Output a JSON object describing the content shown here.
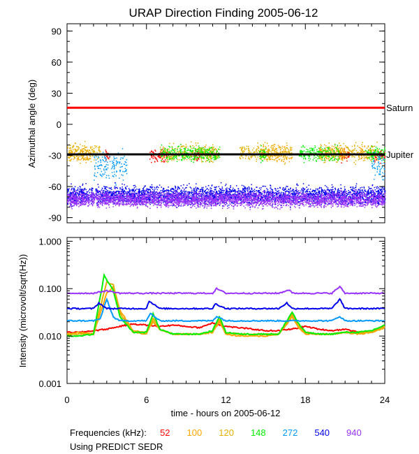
{
  "chart_data": [
    {
      "type": "scatter",
      "title": "URAP Direction Finding  2005-06-12",
      "xlabel": "",
      "ylabel": "Azimuthal angle (deg)",
      "xlim": [
        0,
        24
      ],
      "ylim": [
        -95,
        97
      ],
      "yticks": [
        90,
        60,
        30,
        0,
        -30,
        -60,
        -90
      ],
      "reference_lines": [
        {
          "name": "Saturn",
          "value": 16,
          "x_range": [
            0,
            24
          ],
          "color": "#ff0000"
        },
        {
          "name": "Jupiter",
          "value": -29,
          "x_range": [
            0,
            24
          ],
          "color": "#000000"
        }
      ],
      "series": [
        {
          "name": "52",
          "color": "#ff0000",
          "azimuth_mean": -30,
          "azimuth_spread": 4,
          "active_hours": [
            [
              2.8,
              3.2
            ],
            [
              6.2,
              7.6
            ],
            [
              9.5,
              10
            ],
            [
              20.5,
              21.3
            ],
            [
              23.2,
              24
            ]
          ]
        },
        {
          "name": "100",
          "color": "#ffa500",
          "azimuth_mean": -28,
          "azimuth_spread": 5,
          "active_hours": [
            [
              0,
              1.8
            ],
            [
              10,
              11
            ],
            [
              14.5,
              17
            ],
            [
              19,
              21
            ],
            [
              22,
              23
            ]
          ]
        },
        {
          "name": "120",
          "color": "#e0b000",
          "azimuth_mean": -27,
          "azimuth_spread": 6,
          "active_hours": [
            [
              0,
              2.5
            ],
            [
              7,
              11.5
            ],
            [
              13,
              17
            ],
            [
              19,
              23.5
            ]
          ]
        },
        {
          "name": "148",
          "color": "#00ee00",
          "azimuth_mean": -28,
          "azimuth_spread": 5,
          "active_hours": [
            [
              7,
              11.5
            ],
            [
              14.5,
              15
            ],
            [
              17.5,
              20.5
            ],
            [
              22.5,
              24
            ]
          ]
        },
        {
          "name": "272",
          "color": "#0099ff",
          "azimuth_mean": -40,
          "azimuth_spread": 10,
          "active_hours": [
            [
              2,
              4.5
            ],
            [
              23,
              24
            ]
          ]
        },
        {
          "name": "540",
          "color": "#0000ee",
          "azimuth_mean": -68,
          "azimuth_spread": 6,
          "active_hours": [
            [
              0,
              24
            ]
          ]
        },
        {
          "name": "940",
          "color": "#9933ff",
          "azimuth_mean": -72,
          "azimuth_spread": 5,
          "active_hours": [
            [
              0,
              24
            ]
          ]
        }
      ]
    },
    {
      "type": "line",
      "title": "",
      "xlabel": "time - hours on 2005-06-12",
      "ylabel": "Intensity (microvolt/sqrt(Hz))",
      "xlim": [
        0,
        24
      ],
      "xticks": [
        0,
        6,
        12,
        18,
        24
      ],
      "yscale": "log",
      "ylim": [
        0.001,
        1.2
      ],
      "yticks": [
        "1.000",
        "0.100",
        "0.010",
        "0.001"
      ],
      "ytick_values": [
        1,
        0.1,
        0.01,
        0.001
      ],
      "series": [
        {
          "name": "52",
          "color": "#ff0000",
          "x": [
            0,
            1,
            2,
            3,
            4,
            5,
            6,
            7,
            8,
            9,
            10,
            11,
            12,
            13,
            14,
            15,
            16,
            17,
            18,
            19,
            20,
            21,
            22,
            23,
            24
          ],
          "y": [
            0.012,
            0.012,
            0.013,
            0.014,
            0.016,
            0.018,
            0.017,
            0.016,
            0.017,
            0.016,
            0.015,
            0.019,
            0.016,
            0.015,
            0.014,
            0.013,
            0.013,
            0.014,
            0.016,
            0.014,
            0.013,
            0.014,
            0.012,
            0.012,
            0.016
          ]
        },
        {
          "name": "100",
          "color": "#ffa500",
          "x": [
            0,
            1,
            2,
            3,
            3.5,
            4,
            5,
            6,
            6.5,
            7,
            8,
            9,
            10,
            11,
            11.5,
            12,
            13,
            14,
            15,
            16,
            17,
            17.5,
            18,
            19,
            20,
            21,
            22,
            23,
            24
          ],
          "y": [
            0.011,
            0.012,
            0.011,
            0.08,
            0.11,
            0.035,
            0.013,
            0.012,
            0.02,
            0.014,
            0.011,
            0.011,
            0.011,
            0.012,
            0.02,
            0.011,
            0.01,
            0.01,
            0.01,
            0.011,
            0.025,
            0.015,
            0.011,
            0.011,
            0.011,
            0.012,
            0.011,
            0.012,
            0.015
          ]
        },
        {
          "name": "120",
          "color": "#e0b000",
          "x": [
            0,
            1,
            2,
            3,
            3.5,
            4,
            5,
            6,
            6.5,
            7,
            8,
            9,
            10,
            11,
            11.5,
            12,
            13,
            14,
            15,
            16,
            17,
            17.5,
            18,
            19,
            20,
            21,
            22,
            23,
            24
          ],
          "y": [
            0.011,
            0.011,
            0.011,
            0.14,
            0.12,
            0.03,
            0.012,
            0.011,
            0.024,
            0.014,
            0.011,
            0.011,
            0.011,
            0.012,
            0.022,
            0.012,
            0.011,
            0.011,
            0.011,
            0.011,
            0.028,
            0.016,
            0.012,
            0.011,
            0.011,
            0.012,
            0.012,
            0.012,
            0.016
          ]
        },
        {
          "name": "148",
          "color": "#00ee00",
          "x": [
            0,
            1,
            2,
            2.8,
            3.5,
            4,
            5,
            6,
            6.5,
            7,
            8,
            9,
            10,
            11,
            11.5,
            12,
            13,
            14,
            15,
            16,
            17,
            17.5,
            18,
            19,
            20,
            21,
            22,
            23,
            24
          ],
          "y": [
            0.01,
            0.01,
            0.011,
            0.19,
            0.09,
            0.025,
            0.012,
            0.012,
            0.03,
            0.014,
            0.011,
            0.011,
            0.011,
            0.013,
            0.026,
            0.012,
            0.011,
            0.011,
            0.011,
            0.011,
            0.032,
            0.018,
            0.012,
            0.011,
            0.011,
            0.012,
            0.012,
            0.013,
            0.017
          ]
        },
        {
          "name": "272",
          "color": "#0099ff",
          "x": [
            0,
            1,
            2,
            2.5,
            3,
            3.5,
            4,
            5,
            6,
            6.3,
            7,
            8,
            9,
            10,
            11,
            11.3,
            12,
            13,
            14,
            15,
            16,
            16.5,
            17,
            18,
            19,
            20,
            20.6,
            21,
            22,
            23,
            24
          ],
          "y": [
            0.021,
            0.021,
            0.021,
            0.023,
            0.06,
            0.025,
            0.021,
            0.021,
            0.021,
            0.03,
            0.021,
            0.021,
            0.021,
            0.021,
            0.021,
            0.026,
            0.021,
            0.021,
            0.021,
            0.021,
            0.021,
            0.021,
            0.021,
            0.021,
            0.021,
            0.021,
            0.026,
            0.021,
            0.021,
            0.021,
            0.021
          ]
        },
        {
          "name": "540",
          "color": "#0000ee",
          "x": [
            0,
            1,
            2,
            2.4,
            3,
            4,
            5,
            6,
            6.2,
            7,
            8,
            9,
            10,
            11,
            11.2,
            12,
            13,
            14,
            15,
            16,
            16.6,
            17,
            18,
            19,
            20,
            20.6,
            21,
            22,
            23,
            24
          ],
          "y": [
            0.038,
            0.038,
            0.038,
            0.05,
            0.038,
            0.038,
            0.038,
            0.038,
            0.055,
            0.038,
            0.038,
            0.038,
            0.038,
            0.038,
            0.048,
            0.038,
            0.038,
            0.038,
            0.038,
            0.038,
            0.05,
            0.038,
            0.038,
            0.038,
            0.038,
            0.06,
            0.038,
            0.038,
            0.038,
            0.038
          ]
        },
        {
          "name": "940",
          "color": "#9933ff",
          "x": [
            0,
            1,
            2,
            3,
            4,
            5,
            6,
            7,
            8,
            9,
            10,
            11,
            11.3,
            12,
            13,
            14,
            15,
            16,
            16.8,
            17,
            18,
            19,
            20,
            20.6,
            21,
            22,
            23,
            24
          ],
          "y": [
            0.08,
            0.08,
            0.08,
            0.09,
            0.08,
            0.08,
            0.08,
            0.08,
            0.08,
            0.08,
            0.08,
            0.08,
            0.1,
            0.08,
            0.08,
            0.08,
            0.08,
            0.08,
            0.095,
            0.08,
            0.08,
            0.08,
            0.08,
            0.11,
            0.08,
            0.08,
            0.08,
            0.08
          ]
        }
      ]
    }
  ],
  "legend": {
    "label": "Frequencies (kHz):",
    "items": [
      {
        "text": "52",
        "color": "#ff0000"
      },
      {
        "text": "100",
        "color": "#ffa500"
      },
      {
        "text": "120",
        "color": "#e0b000"
      },
      {
        "text": "148",
        "color": "#00ee00"
      },
      {
        "text": "272",
        "color": "#0099ff"
      },
      {
        "text": "540",
        "color": "#0000ee"
      },
      {
        "text": "940",
        "color": "#9933ff"
      }
    ]
  },
  "note": "Using PREDICT SEDR"
}
